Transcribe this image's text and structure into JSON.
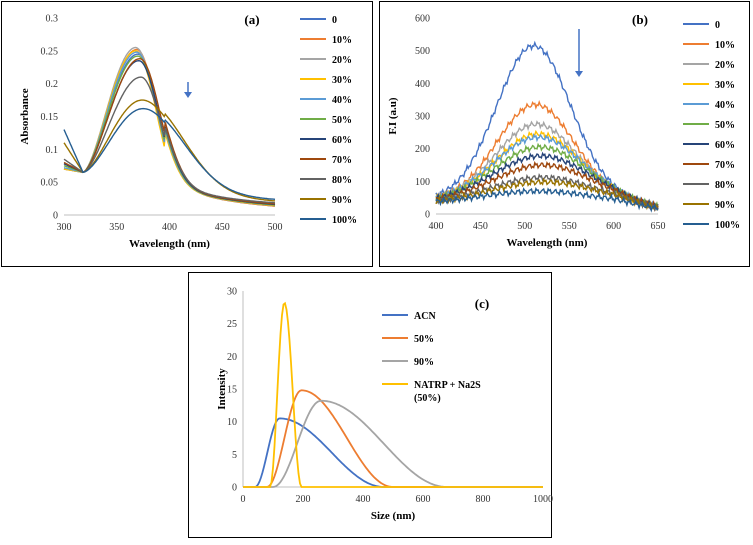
{
  "chart_data": [
    {
      "type": "line",
      "title": "(a)",
      "xlabel": "Wavelength (nm)",
      "ylabel": "Absorbance",
      "xlim": [
        300,
        500
      ],
      "ylim": [
        0,
        0.3
      ],
      "xticks": [
        "300",
        "350",
        "400",
        "450",
        "500"
      ],
      "yticks": [
        "0",
        "0.05",
        "0.1",
        "0.15",
        "0.2",
        "0.25",
        "0.3"
      ],
      "arrow": "down",
      "series": [
        {
          "name": "0",
          "color": "#4472C4",
          "peak_x": 370,
          "peak_y": 0.245,
          "start": 0.07,
          "tail": 0.006
        },
        {
          "name": "10%",
          "color": "#ED7D31",
          "peak_x": 369,
          "peak_y": 0.252,
          "start": 0.07,
          "tail": 0.006
        },
        {
          "name": "20%",
          "color": "#A5A5A5",
          "peak_x": 368,
          "peak_y": 0.255,
          "start": 0.07,
          "tail": 0.007
        },
        {
          "name": "30%",
          "color": "#FFC000",
          "peak_x": 368,
          "peak_y": 0.25,
          "start": 0.07,
          "tail": 0.007
        },
        {
          "name": "40%",
          "color": "#5B9BD5",
          "peak_x": 369,
          "peak_y": 0.248,
          "start": 0.072,
          "tail": 0.008
        },
        {
          "name": "50%",
          "color": "#70AD47",
          "peak_x": 370,
          "peak_y": 0.242,
          "start": 0.075,
          "tail": 0.008
        },
        {
          "name": "60%",
          "color": "#264478",
          "peak_x": 371,
          "peak_y": 0.235,
          "start": 0.078,
          "tail": 0.009
        },
        {
          "name": "70%",
          "color": "#9E480E",
          "peak_x": 372,
          "peak_y": 0.238,
          "start": 0.08,
          "tail": 0.01
        },
        {
          "name": "80%",
          "color": "#636363",
          "peak_x": 373,
          "peak_y": 0.21,
          "start": 0.085,
          "tail": 0.012
        },
        {
          "name": "90%",
          "color": "#997300",
          "peak_x": 374,
          "peak_y": 0.175,
          "start": 0.11,
          "tail": 0.015
        },
        {
          "name": "100%",
          "color": "#255E91",
          "peak_x": 375,
          "peak_y": 0.162,
          "start": 0.13,
          "tail": 0.018
        }
      ]
    },
    {
      "type": "line",
      "title": "(b)",
      "xlabel": "Wavelength (nm)",
      "ylabel": "F.I (a.u)",
      "xlim": [
        400,
        650
      ],
      "ylim": [
        0,
        600
      ],
      "xticks": [
        "400",
        "450",
        "500",
        "550",
        "600",
        "650"
      ],
      "yticks": [
        "0",
        "100",
        "200",
        "300",
        "400",
        "500",
        "600"
      ],
      "arrow": "down",
      "series": [
        {
          "name": "0",
          "color": "#4472C4",
          "peak_x": 510,
          "peak_y": 515,
          "base": 60
        },
        {
          "name": "10%",
          "color": "#ED7D31",
          "peak_x": 512,
          "peak_y": 335,
          "base": 55
        },
        {
          "name": "20%",
          "color": "#A5A5A5",
          "peak_x": 513,
          "peak_y": 275,
          "base": 55
        },
        {
          "name": "30%",
          "color": "#FFC000",
          "peak_x": 515,
          "peak_y": 245,
          "base": 52
        },
        {
          "name": "40%",
          "color": "#5B9BD5",
          "peak_x": 515,
          "peak_y": 235,
          "base": 52
        },
        {
          "name": "50%",
          "color": "#70AD47",
          "peak_x": 517,
          "peak_y": 205,
          "base": 50
        },
        {
          "name": "60%",
          "color": "#264478",
          "peak_x": 518,
          "peak_y": 178,
          "base": 50
        },
        {
          "name": "70%",
          "color": "#9E480E",
          "peak_x": 520,
          "peak_y": 150,
          "base": 48
        },
        {
          "name": "80%",
          "color": "#636363",
          "peak_x": 520,
          "peak_y": 112,
          "base": 45
        },
        {
          "name": "90%",
          "color": "#997300",
          "peak_x": 522,
          "peak_y": 98,
          "base": 45
        },
        {
          "name": "100%",
          "color": "#255E91",
          "peak_x": 515,
          "peak_y": 70,
          "base": 45
        }
      ]
    },
    {
      "type": "line",
      "title": "(c)",
      "xlabel": "Size (nm)",
      "ylabel": "Intensity",
      "xlim": [
        0,
        1000
      ],
      "ylim": [
        0,
        30
      ],
      "xticks": [
        "0",
        "200",
        "400",
        "600",
        "800",
        "1000"
      ],
      "yticks": [
        "0",
        "5",
        "10",
        "15",
        "20",
        "25",
        "30"
      ],
      "series": [
        {
          "name": "ACN",
          "color": "#4472C4",
          "start": 40,
          "peak_x": 122,
          "peak_y": 10.5,
          "end": 470
        },
        {
          "name": "50%",
          "color": "#ED7D31",
          "start": 80,
          "peak_x": 195,
          "peak_y": 14.8,
          "end": 500
        },
        {
          "name": "90%",
          "color": "#A5A5A5",
          "start": 100,
          "peak_x": 260,
          "peak_y": 13.2,
          "end": 680
        },
        {
          "name": "NATRP + Na2S (50%)",
          "legend_lines": [
            "NATRP + Na2S",
            "(50%)"
          ],
          "color": "#FFC000",
          "start": 90,
          "peak_x": 138,
          "peak_y": 28.2,
          "end": 195
        }
      ]
    }
  ]
}
